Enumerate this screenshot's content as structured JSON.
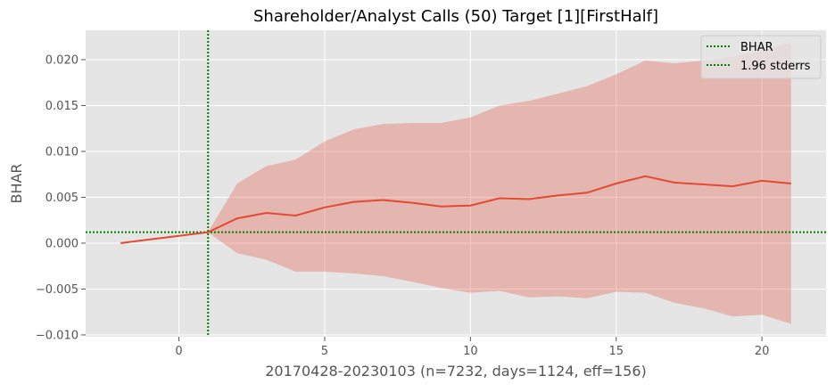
{
  "chart_data": {
    "type": "line",
    "title": "Shareholder/Analyst Calls (50) Target [1][FirstHalf]",
    "xlabel": "20170428-20230103 (n=7232, days=1124, eff=156)",
    "ylabel": "BHAR",
    "xlim": [
      -3.2,
      22.2
    ],
    "ylim": [
      -0.0102,
      0.0232
    ],
    "xticks": [
      0,
      5,
      10,
      15,
      20
    ],
    "xtick_labels": [
      "0",
      "5",
      "10",
      "15",
      "20"
    ],
    "yticks": [
      -0.01,
      -0.005,
      0.0,
      0.005,
      0.01,
      0.015,
      0.02
    ],
    "ytick_labels": [
      "−0.010",
      "−0.005",
      "0.000",
      "0.005",
      "0.010",
      "0.015",
      "0.020"
    ],
    "grid": true,
    "legend_position": "top-right",
    "legend": [
      {
        "label": "BHAR",
        "style": "dotted",
        "color": "#008000"
      },
      {
        "label": "1.96 stderrs",
        "style": "dotted",
        "color": "#008000"
      }
    ],
    "x": [
      -2,
      -1,
      0,
      1,
      2,
      3,
      4,
      5,
      6,
      7,
      8,
      9,
      10,
      11,
      12,
      13,
      14,
      15,
      16,
      17,
      18,
      19,
      20,
      21
    ],
    "series": [
      {
        "values": [
          0.0,
          0.0004,
          0.0008,
          0.0012,
          0.0027,
          0.0033,
          0.003,
          0.0039,
          0.0045,
          0.0047,
          0.0044,
          0.004,
          0.0041,
          0.0049,
          0.0048,
          0.0052,
          0.0055,
          0.0065,
          0.0073,
          0.0066,
          0.0064,
          0.0062,
          0.0068,
          0.0065
        ],
        "color": "#e24a33"
      }
    ],
    "band": {
      "x": [
        1,
        2,
        3,
        4,
        5,
        6,
        7,
        8,
        9,
        10,
        11,
        12,
        13,
        14,
        15,
        16,
        17,
        18,
        19,
        20,
        21
      ],
      "upper": [
        0.0012,
        0.0065,
        0.0084,
        0.0091,
        0.0111,
        0.0124,
        0.013,
        0.0131,
        0.0131,
        0.0137,
        0.015,
        0.0155,
        0.0163,
        0.0171,
        0.0184,
        0.0199,
        0.0196,
        0.0199,
        0.0203,
        0.021,
        0.0219
      ],
      "lower": [
        0.0012,
        -0.0011,
        -0.0018,
        -0.0031,
        -0.0031,
        -0.0033,
        -0.0036,
        -0.0042,
        -0.0049,
        -0.0054,
        -0.0052,
        -0.0059,
        -0.0058,
        -0.006,
        -0.0053,
        -0.0054,
        -0.0065,
        -0.0071,
        -0.008,
        -0.0078,
        -0.0088
      ],
      "color": "#e24a33"
    },
    "reference_lines": [
      {
        "orientation": "horizontal",
        "value": 0.0012,
        "color": "#008000",
        "style": "dotted"
      },
      {
        "orientation": "vertical",
        "value": 1,
        "color": "#008000",
        "style": "dotted"
      }
    ],
    "colors": {
      "plot_background": "#e5e5e5",
      "grid": "#ffffff",
      "tick_text": "#555555",
      "title_text": "#000000"
    }
  }
}
